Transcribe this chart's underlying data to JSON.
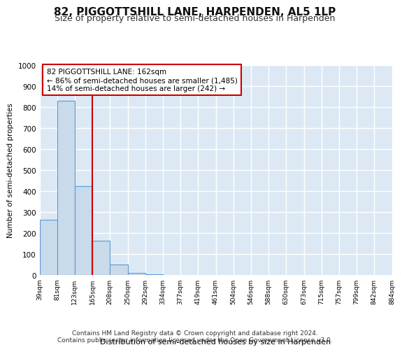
{
  "title": "82, PIGGOTTSHILL LANE, HARPENDEN, AL5 1LP",
  "subtitle": "Size of property relative to semi-detached houses in Harpenden",
  "xlabel": "Distribution of semi-detached houses by size in Harpenden",
  "ylabel": "Number of semi-detached properties",
  "bar_values": [
    265,
    830,
    425,
    165,
    50,
    12,
    5,
    2,
    1,
    0,
    0,
    0,
    0,
    0,
    0,
    0,
    0,
    0,
    0,
    0
  ],
  "bar_labels": [
    "39sqm",
    "81sqm",
    "123sqm",
    "165sqm",
    "208sqm",
    "250sqm",
    "292sqm",
    "334sqm",
    "377sqm",
    "419sqm",
    "461sqm",
    "504sqm",
    "546sqm",
    "588sqm",
    "630sqm",
    "673sqm",
    "715sqm",
    "757sqm",
    "799sqm",
    "842sqm",
    "884sqm"
  ],
  "bar_color": "#c9daea",
  "bar_edge_color": "#5b9bd5",
  "vline_color": "#cc0000",
  "annotation_text": "82 PIGGOTTSHILL LANE: 162sqm\n← 86% of semi-detached houses are smaller (1,485)\n14% of semi-detached houses are larger (242) →",
  "ylim": [
    0,
    1000
  ],
  "yticks": [
    0,
    100,
    200,
    300,
    400,
    500,
    600,
    700,
    800,
    900,
    1000
  ],
  "bg_color": "#dce9f5",
  "grid_color": "#ffffff",
  "footer": "Contains HM Land Registry data © Crown copyright and database right 2024.\nContains public sector information licensed under the Open Government Licence v3.0.",
  "title_fontsize": 11,
  "subtitle_fontsize": 9,
  "annotation_fontsize": 7.5,
  "footer_fontsize": 6.5
}
